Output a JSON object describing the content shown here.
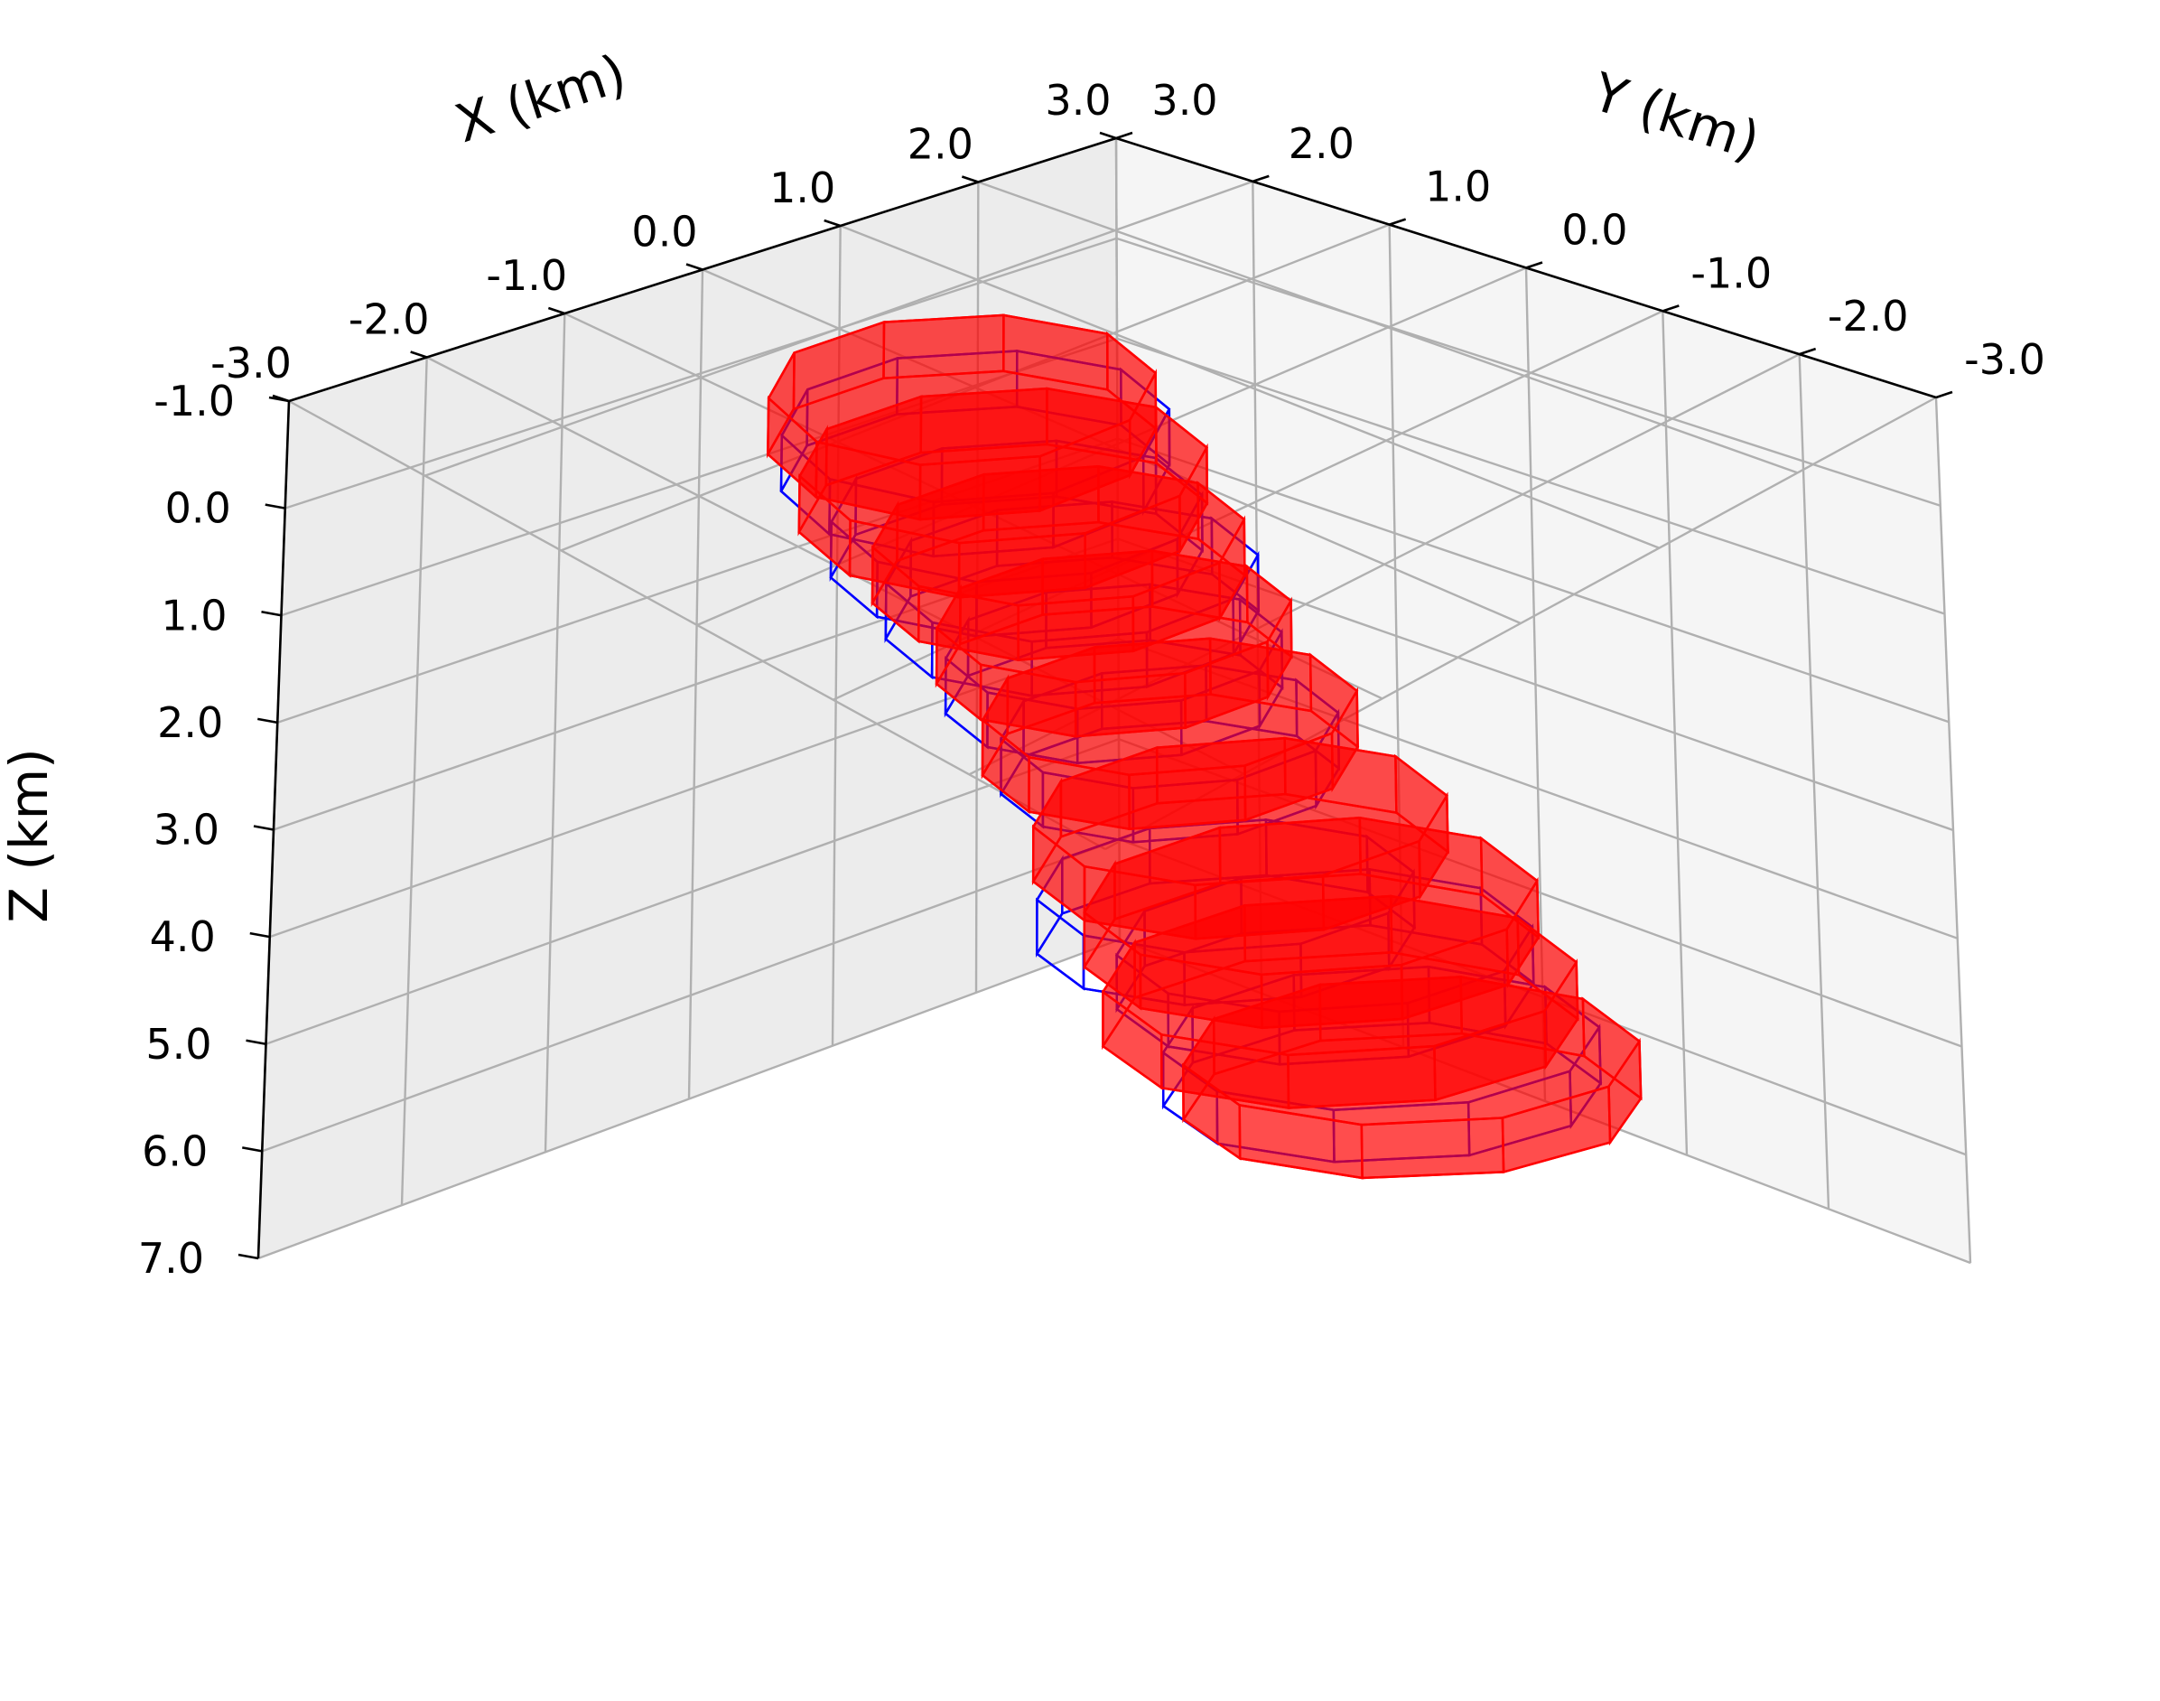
{
  "chart_data": {
    "type": "3d-bodies",
    "x_axis": {
      "label": "X (km)",
      "range": [
        -3.0,
        3.0
      ],
      "ticks": [
        "-3.0",
        "-2.0",
        "-1.0",
        "0.0",
        "1.0",
        "2.0",
        "3.0"
      ]
    },
    "y_axis": {
      "label": "Y (km)",
      "range": [
        -3.0,
        3.0
      ],
      "ticks": [
        "3.0",
        "2.0",
        "1.0",
        "0.0",
        "-1.0",
        "-2.0",
        "-3.0"
      ]
    },
    "z_axis": {
      "label": "Z (km)",
      "range": [
        -1.0,
        7.0
      ],
      "inverted": true,
      "ticks": [
        "-1.0",
        "0.0",
        "1.0",
        "2.0",
        "3.0",
        "4.0",
        "5.0",
        "6.0",
        "7.0"
      ]
    },
    "grid": true,
    "series": [
      {
        "style": "wireframe",
        "color": "#0000ff",
        "bodies": [
          {
            "x": 0.3,
            "y": 1.3,
            "z": -0.3,
            "r": 1.05
          },
          {
            "x": 0.5,
            "y": 1.2,
            "z": 0.6,
            "r": 1.0
          },
          {
            "x": 0.7,
            "y": 1.0,
            "z": 1.2,
            "r": 1.0
          },
          {
            "x": 0.8,
            "y": 0.8,
            "z": 1.9,
            "r": 0.9
          },
          {
            "x": 0.9,
            "y": 0.5,
            "z": 2.6,
            "r": 0.9
          },
          {
            "x": 0.6,
            "y": -0.2,
            "z": 3.7,
            "r": 1.0
          },
          {
            "x": 1.0,
            "y": -0.5,
            "z": 4.3,
            "r": 1.1
          },
          {
            "x": 0.9,
            "y": -1.0,
            "z": 5.0,
            "r": 1.15
          }
        ]
      },
      {
        "style": "solid",
        "color": "#ff0000",
        "bodies": [
          {
            "x": 0.4,
            "y": 1.5,
            "z": -0.5,
            "r": 1.05
          },
          {
            "x": 0.6,
            "y": 1.4,
            "z": 0.3,
            "r": 1.1
          },
          {
            "x": 0.8,
            "y": 1.2,
            "z": 1.0,
            "r": 1.0
          },
          {
            "x": 0.9,
            "y": 0.9,
            "z": 1.7,
            "r": 0.95
          },
          {
            "x": 1.0,
            "y": 0.6,
            "z": 2.5,
            "r": 1.0
          },
          {
            "x": 1.1,
            "y": 0.2,
            "z": 3.4,
            "r": 1.1
          },
          {
            "x": 1.2,
            "y": -0.2,
            "z": 4.1,
            "r": 1.2
          },
          {
            "x": 1.2,
            "y": -0.4,
            "z": 4.8,
            "r": 1.25
          },
          {
            "x": 1.4,
            "y": -0.7,
            "z": 5.5,
            "r": 1.2
          }
        ]
      }
    ]
  }
}
